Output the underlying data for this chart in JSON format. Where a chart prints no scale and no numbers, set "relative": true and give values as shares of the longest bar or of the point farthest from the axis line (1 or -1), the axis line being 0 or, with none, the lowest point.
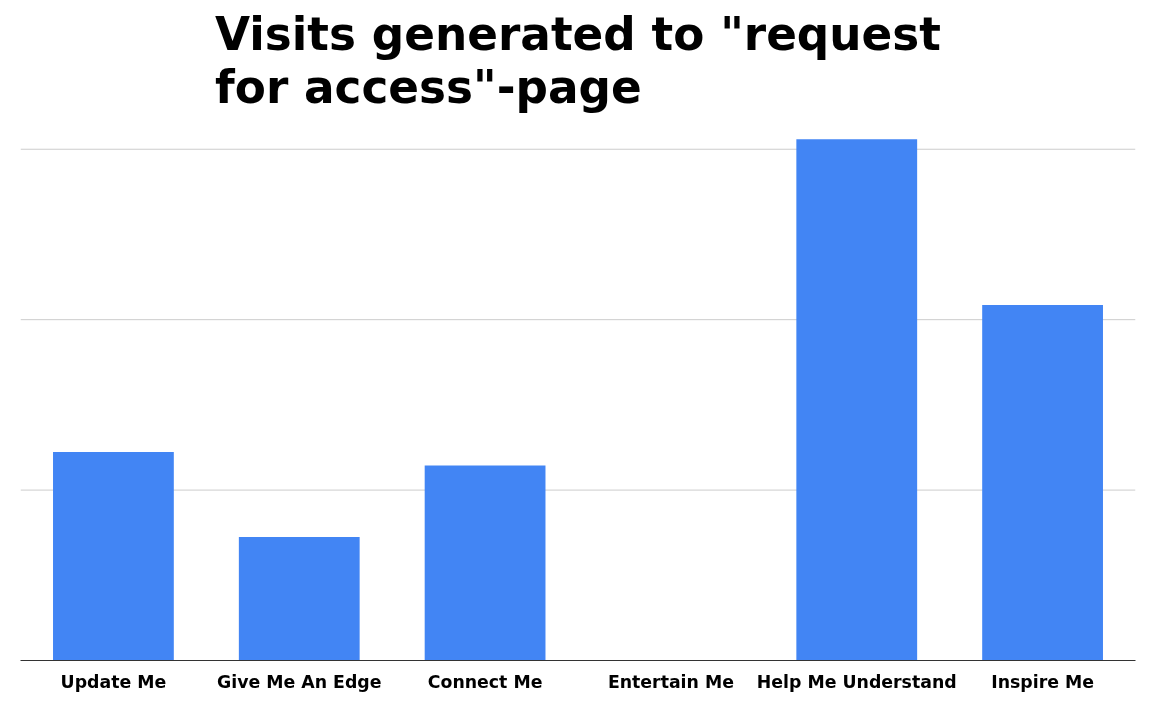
{
  "chart_data": {
    "type": "bar",
    "title": "Visits generated to \"request\nfor access\"-page",
    "categories": [
      "Update Me",
      "Give Me An Edge",
      "Connect Me",
      "Entertain Me",
      "Help Me Understand",
      "Inspire Me"
    ],
    "values": [
      0.4,
      0.237,
      0.374,
      0,
      1,
      0.682
    ],
    "color": "#4285f4",
    "relative": true,
    "ref_lines": [
      {
        "axis": "y",
        "value": 0.327,
        "color": "#cccccc"
      },
      {
        "axis": "y",
        "value": 0.654,
        "color": "#cccccc"
      },
      {
        "axis": "y",
        "value": 0.981,
        "color": "#cccccc"
      }
    ]
  }
}
